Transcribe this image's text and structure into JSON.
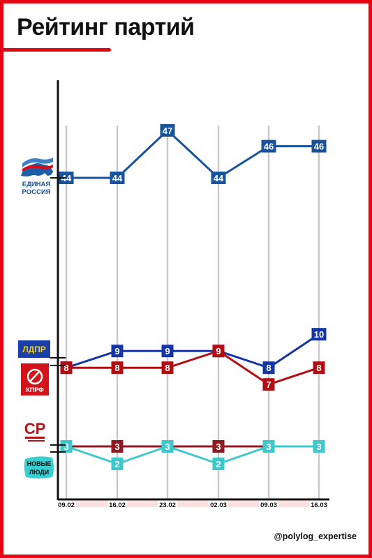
{
  "title": "Рейтинг партий",
  "watermark": "@polylog_expertise",
  "logos": {
    "er_line1": "ЕДИНАЯ",
    "er_line2": "РОССИЯ",
    "ldpr": "ЛДПР",
    "kprf": "КПРФ",
    "sr_mark": "СР",
    "nl_line1": "НОВЫЕ",
    "nl_line2": "ЛЮДИ"
  },
  "chart_data": {
    "type": "line",
    "categories": [
      "09.02",
      "16.02",
      "23.02",
      "02.03",
      "09.03",
      "16.03"
    ],
    "series": [
      {
        "name": "Единая Россия",
        "color": "#17529a",
        "values": [
          44,
          44,
          47,
          44,
          46,
          46
        ]
      },
      {
        "name": "ЛДПР",
        "color": "#1535a5",
        "values": [
          8,
          9,
          9,
          9,
          8,
          10
        ]
      },
      {
        "name": "КПРФ",
        "color": "#b20e12",
        "values": [
          8,
          8,
          8,
          9,
          7,
          8
        ]
      },
      {
        "name": "Справедливая Россия",
        "color": "#8e1b22",
        "values": [
          3,
          3,
          3,
          3,
          3,
          3
        ]
      },
      {
        "name": "Новые люди",
        "color": "#3ec8cc",
        "values": [
          3,
          2,
          3,
          2,
          3,
          3
        ]
      }
    ],
    "colors": {
      "accent": "#e30613",
      "grid": "#c9c9c9",
      "axis": "#111111"
    },
    "grid": true
  }
}
